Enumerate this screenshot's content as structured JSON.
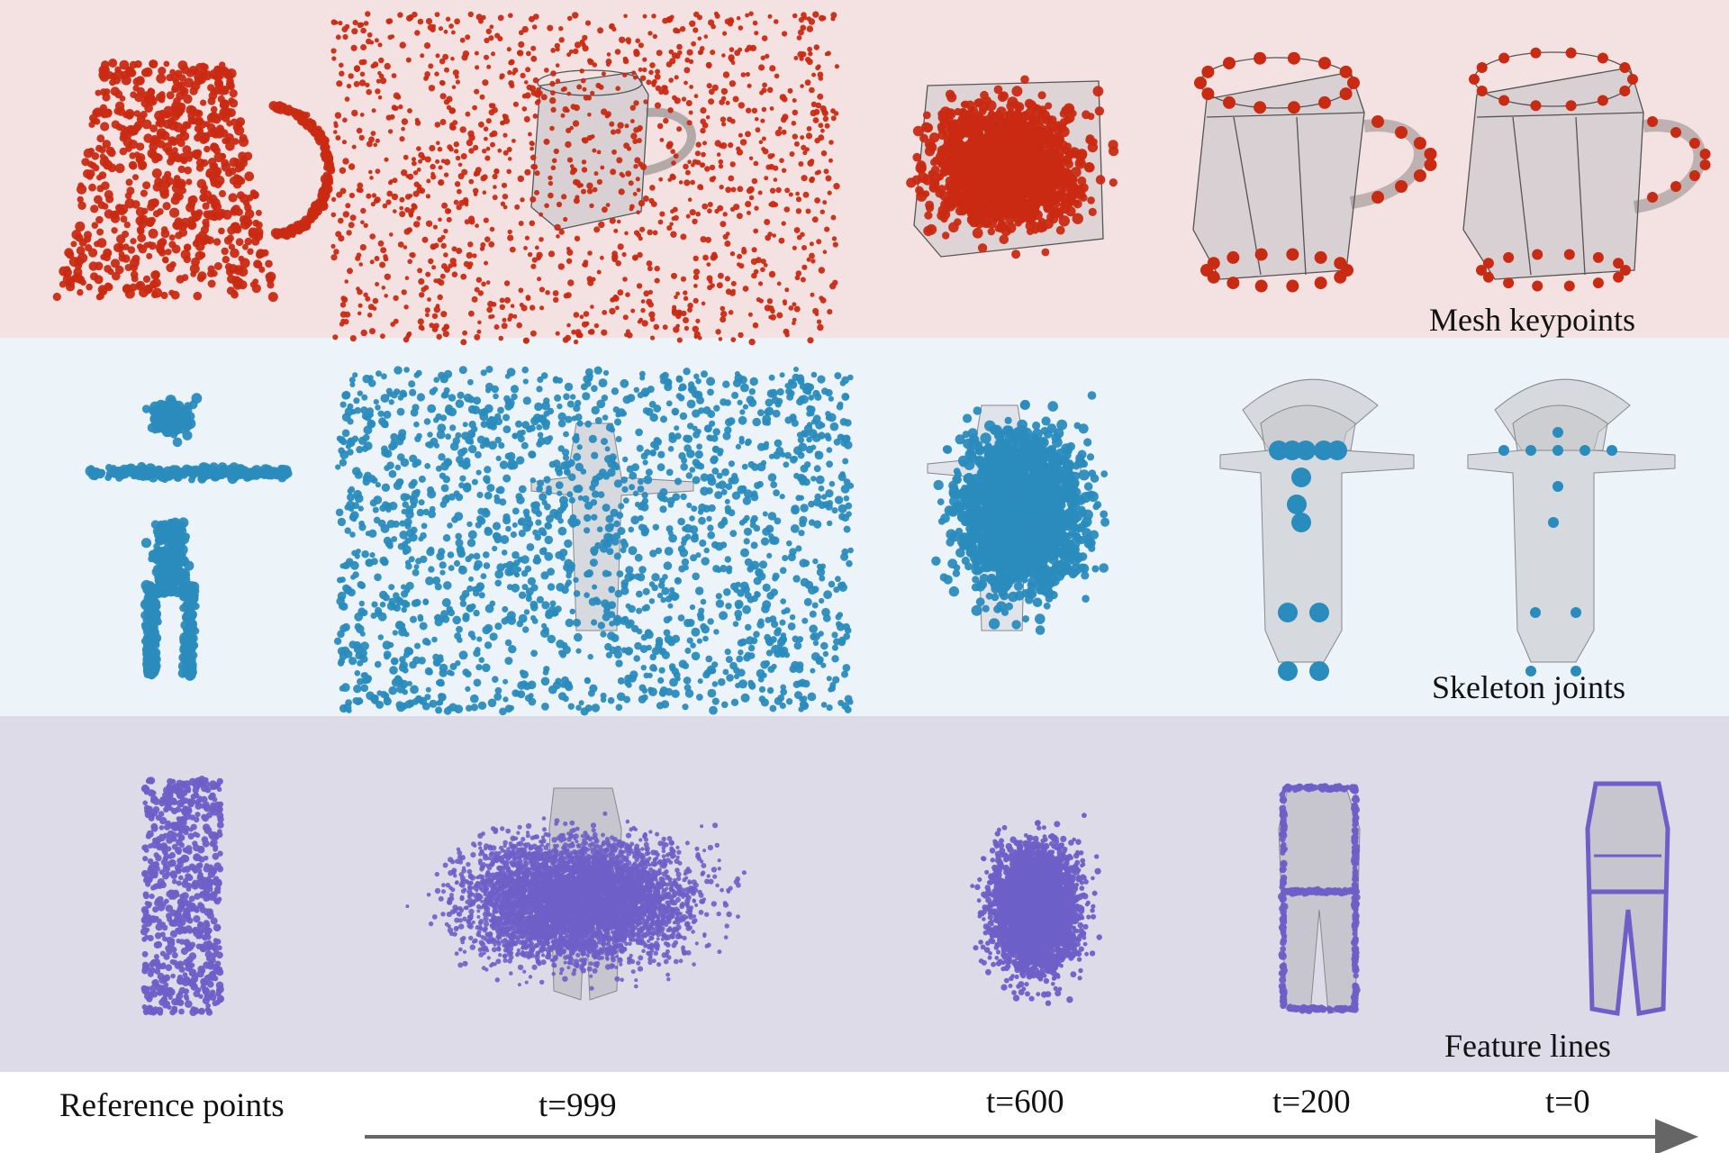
{
  "colors": {
    "band_mug": "#f4e2e2",
    "band_figure": "#ecf3f9",
    "band_dress": "#dedbe8",
    "points_mug": "#c92a12",
    "points_figure": "#2a8bbd",
    "points_dress": "#6e5fc8",
    "mesh": "#b9b9bd",
    "arrow": "#666666"
  },
  "rows": [
    {
      "id": "mug",
      "label": "Mesh keypoints",
      "mesh": "mug-mesh-icon"
    },
    {
      "id": "figure",
      "label": "Skeleton joints",
      "mesh": "cowboy-figure-mesh-icon"
    },
    {
      "id": "dress",
      "label": "Feature lines",
      "mesh": "jumpsuit-mesh-icon"
    }
  ],
  "columns": {
    "reference": "Reference points",
    "timesteps": [
      "t=999",
      "t=600",
      "t=200",
      "t=0"
    ]
  }
}
